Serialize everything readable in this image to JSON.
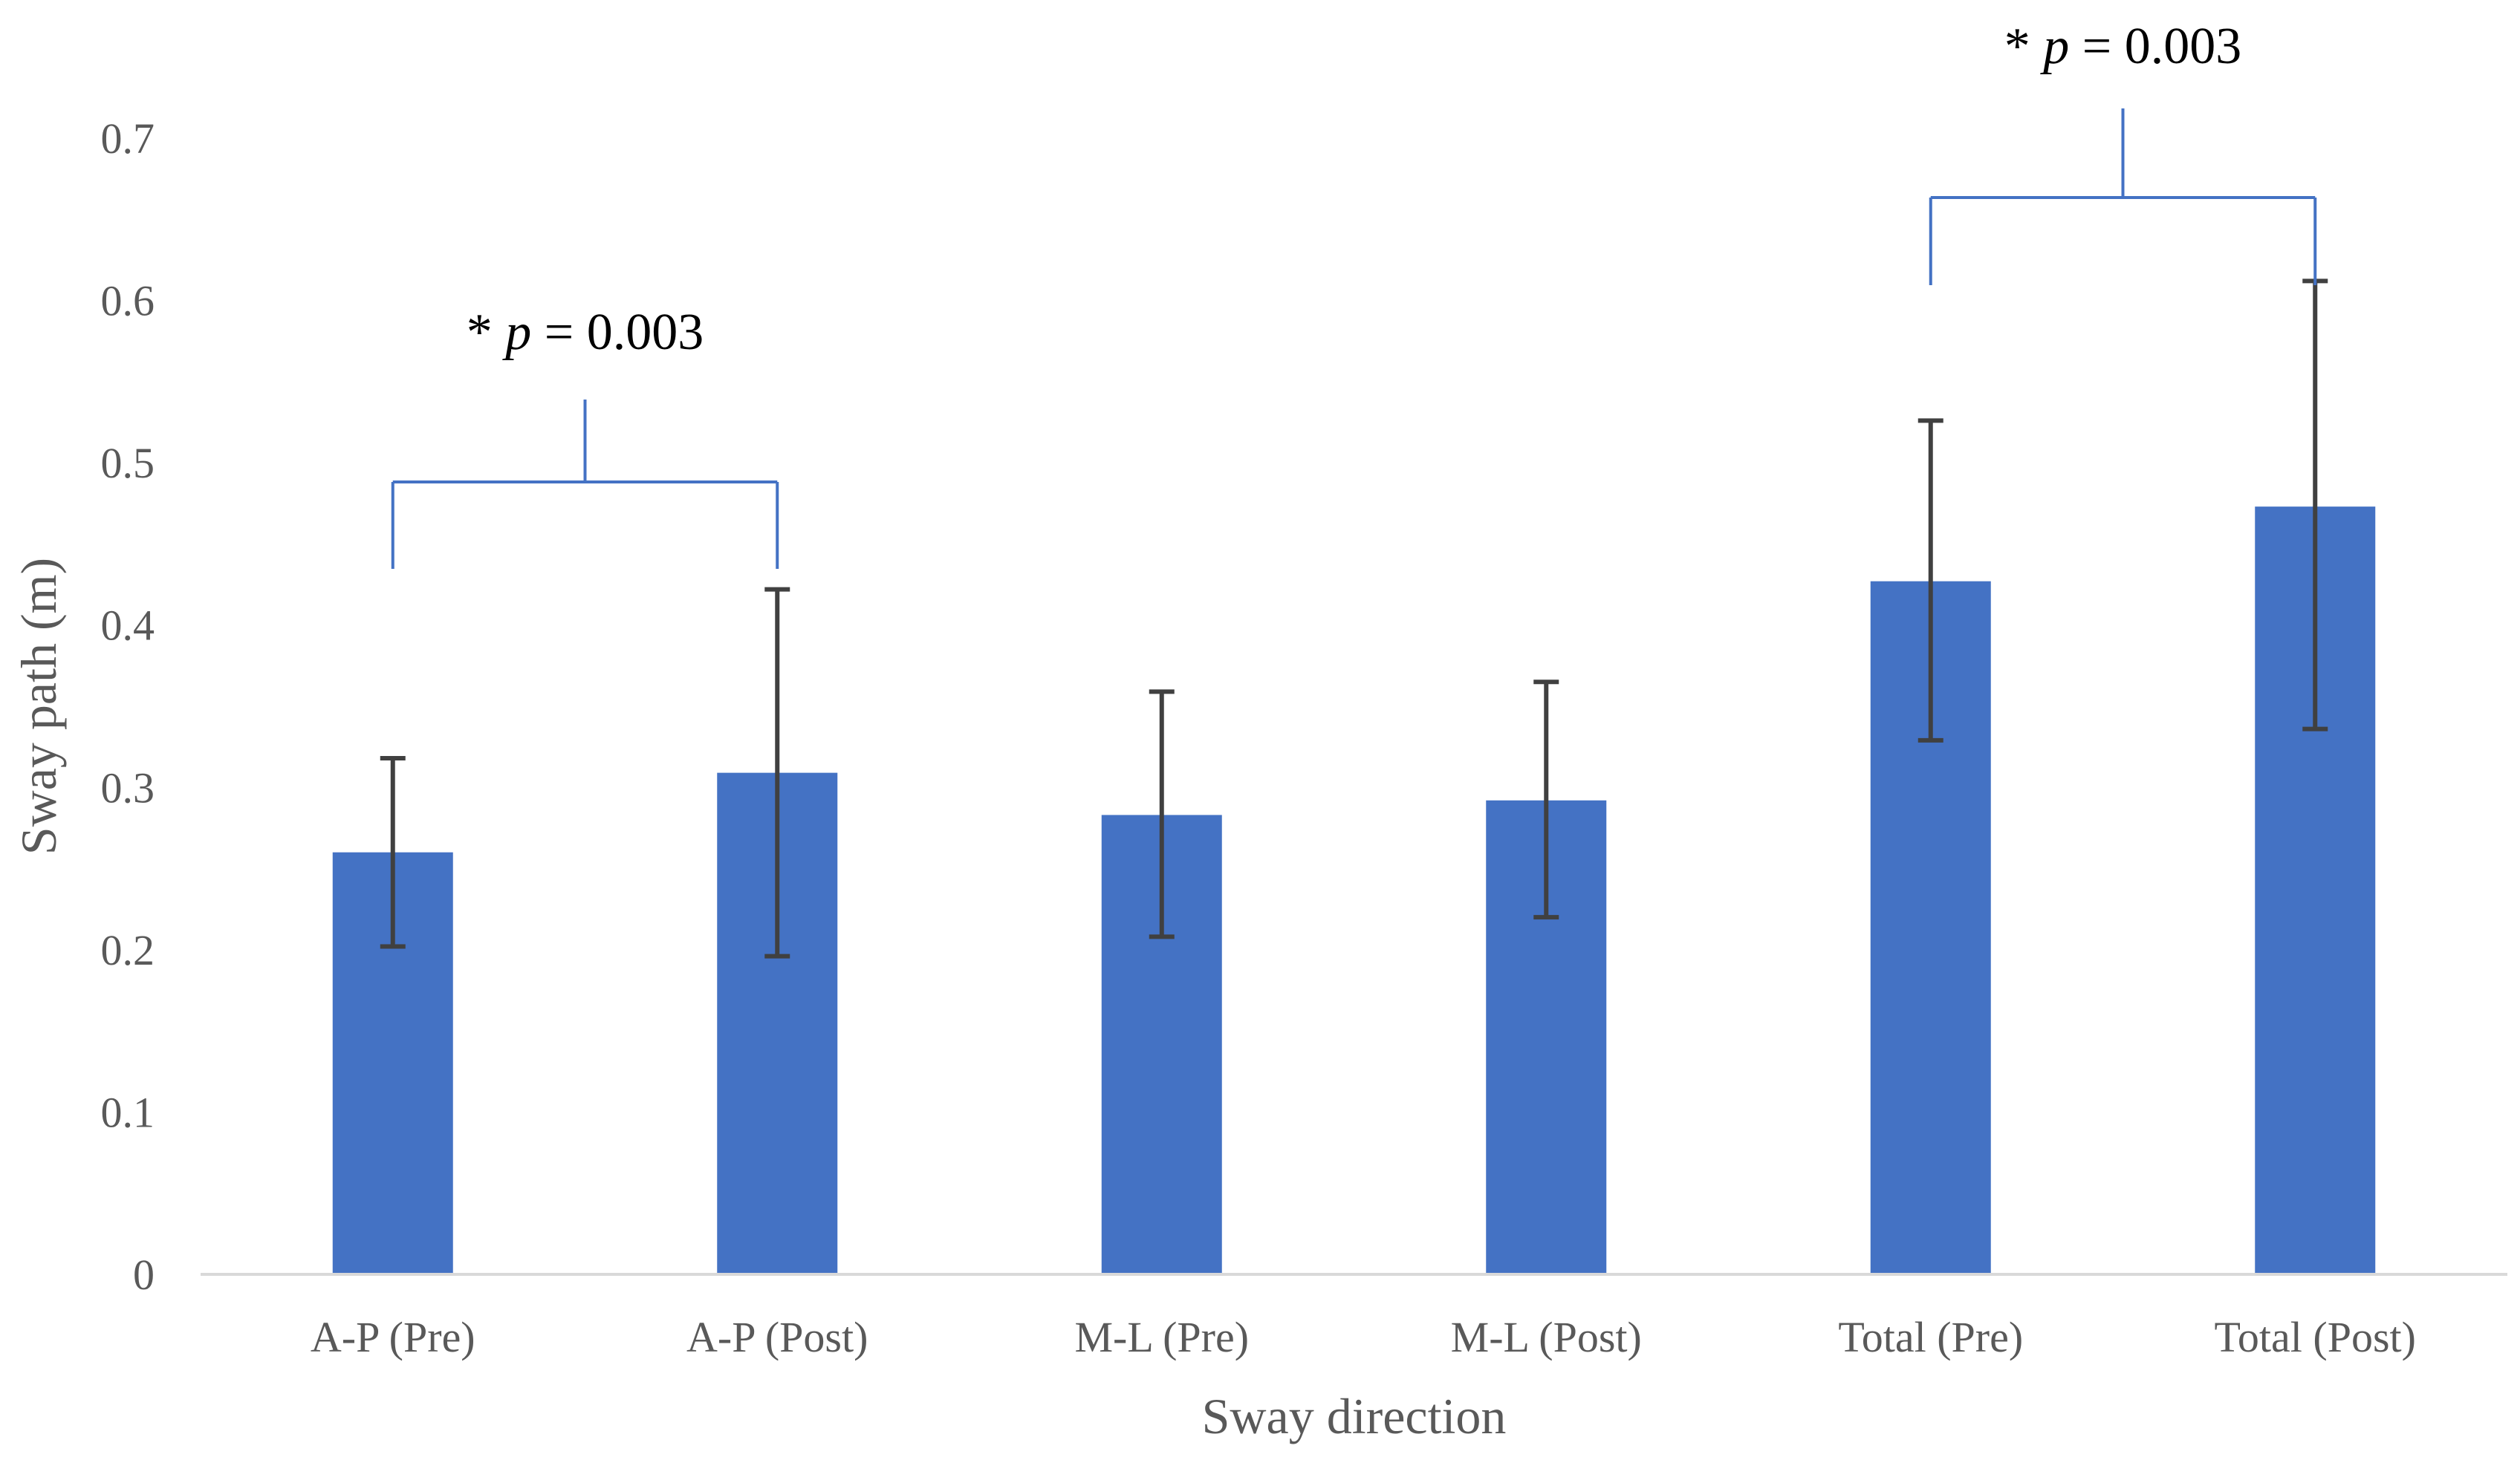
{
  "chart_data": {
    "type": "bar",
    "title": "",
    "xlabel": "Sway direction",
    "ylabel": "Sway path (m)",
    "ylim": [
      0,
      0.7
    ],
    "yticks": [
      0,
      0.1,
      0.2,
      0.3,
      0.4,
      0.5,
      0.6,
      0.7
    ],
    "ytick_labels": [
      "0",
      "0.1",
      "0.2",
      "0.3",
      "0.4",
      "0.5",
      "0.6",
      "0.7"
    ],
    "categories": [
      "A-P (Pre)",
      "A-P (Post)",
      "M-L (Pre)",
      "M-L (Post)",
      "Total (Pre)",
      "Total (Post)"
    ],
    "values": [
      0.26,
      0.309,
      0.283,
      0.292,
      0.427,
      0.473
    ],
    "error_low": [
      0.202,
      0.196,
      0.208,
      0.22,
      0.329,
      0.336
    ],
    "error_high": [
      0.318,
      0.422,
      0.359,
      0.365,
      0.526,
      0.612
    ],
    "grid": false,
    "bar_color": "#4472C4",
    "error_color": "#404040",
    "axis_color": "#D9D9D9",
    "annotations": [
      {
        "label_prefix": "* ",
        "label_italic": "p",
        "label_suffix": " = 0.003",
        "from_index": 0,
        "to_index": 1,
        "color": "#4472C4"
      },
      {
        "label_prefix": "* ",
        "label_italic": "p",
        "label_suffix": " = 0.003",
        "from_index": 4,
        "to_index": 5,
        "color": "#4472C4"
      }
    ]
  }
}
